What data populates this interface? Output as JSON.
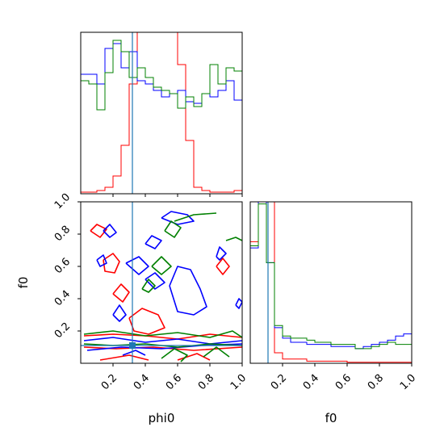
{
  "chart_data": {
    "type": "corner",
    "parameters": [
      "phi0",
      "f0"
    ],
    "truth": {
      "phi0": 0.32,
      "f0": 0.11
    },
    "colors": {
      "red": "#ff0000",
      "blue": "#0000ff",
      "green": "#008000",
      "truth": "#1f77b4"
    },
    "panels": [
      {
        "id": "phi0-hist",
        "type": "histogram",
        "xlim": [
          0,
          1
        ],
        "ytick_labels_shown": false,
        "bins": 20,
        "series": [
          {
            "color": "red",
            "values": [
              0.01,
              0.01,
              0.02,
              0.04,
              0.11,
              0.3,
              0.68,
              1.2,
              1.2,
              1.2,
              1.2,
              1.2,
              0.8,
              0.33,
              0.04,
              0.02,
              0.01,
              0.01,
              0.01,
              0.02
            ]
          },
          {
            "color": "blue",
            "values": [
              0.74,
              0.74,
              0.68,
              0.9,
              0.93,
              0.78,
              0.88,
              0.7,
              0.68,
              0.64,
              0.6,
              0.62,
              0.64,
              0.57,
              0.56,
              0.62,
              0.6,
              0.64,
              0.7,
              0.58
            ]
          },
          {
            "color": "green",
            "values": [
              0.7,
              0.68,
              0.52,
              0.75,
              0.95,
              0.88,
              0.72,
              0.78,
              0.72,
              0.66,
              0.64,
              0.62,
              0.53,
              0.6,
              0.54,
              0.62,
              0.8,
              0.68,
              0.78,
              0.76
            ]
          }
        ]
      },
      {
        "id": "f0-hist",
        "type": "histogram",
        "xlim": [
          0,
          1
        ],
        "xticks": [
          "0.2",
          "0.4",
          "0.6",
          "0.8",
          "1.0"
        ],
        "xlabel": "f0",
        "ytick_labels_shown": false,
        "bins": 20,
        "series": [
          {
            "color": "red",
            "values": [
              0.58,
              1.2,
              1.2,
              0.05,
              0.02,
              0.02,
              0.02,
              0.01,
              0.01,
              0.01,
              0.01,
              0.01,
              0.005,
              0.005,
              0.005,
              0.005,
              0.005,
              0.005,
              0.005,
              0.005
            ]
          },
          {
            "color": "blue",
            "values": [
              0.55,
              0.77,
              0.48,
              0.17,
              0.12,
              0.1,
              0.1,
              0.09,
              0.09,
              0.09,
              0.08,
              0.08,
              0.08,
              0.07,
              0.08,
              0.09,
              0.1,
              0.11,
              0.13,
              0.14
            ]
          },
          {
            "color": "green",
            "values": [
              0.56,
              0.76,
              0.48,
              0.18,
              0.13,
              0.12,
              0.12,
              0.11,
              0.1,
              0.1,
              0.09,
              0.09,
              0.09,
              0.07,
              0.07,
              0.08,
              0.09,
              0.1,
              0.09,
              0.09
            ]
          }
        ]
      },
      {
        "id": "phi0-f0-2d",
        "type": "contour",
        "xlim": [
          0,
          1
        ],
        "ylim": [
          0,
          1
        ],
        "xticks": [
          "0.2",
          "0.4",
          "0.6",
          "0.8",
          "1.0"
        ],
        "yticks": [
          "0.2",
          "0.4",
          "0.6",
          "0.8",
          "1.0"
        ],
        "xlabel": "phi0",
        "ylabel": "f0",
        "contours": [
          {
            "color": "red",
            "points": [
              [
                0.14,
                0.64
              ],
              [
                0.2,
                0.68
              ],
              [
                0.24,
                0.63
              ],
              [
                0.21,
                0.56
              ],
              [
                0.15,
                0.57
              ],
              [
                0.14,
                0.64
              ]
            ]
          },
          {
            "color": "red",
            "points": [
              [
                0.06,
                0.82
              ],
              [
                0.1,
                0.86
              ],
              [
                0.16,
                0.83
              ],
              [
                0.12,
                0.78
              ],
              [
                0.06,
                0.82
              ]
            ]
          },
          {
            "color": "red",
            "points": [
              [
                0.3,
                0.28
              ],
              [
                0.38,
                0.34
              ],
              [
                0.48,
                0.3
              ],
              [
                0.52,
                0.22
              ],
              [
                0.42,
                0.18
              ],
              [
                0.33,
                0.2
              ],
              [
                0.3,
                0.28
              ]
            ]
          },
          {
            "color": "red",
            "points": [
              [
                0.2,
                0.43
              ],
              [
                0.25,
                0.49
              ],
              [
                0.3,
                0.44
              ],
              [
                0.26,
                0.38
              ],
              [
                0.2,
                0.43
              ]
            ]
          },
          {
            "color": "red",
            "points": [
              [
                0.84,
                0.6
              ],
              [
                0.88,
                0.65
              ],
              [
                0.92,
                0.6
              ],
              [
                0.88,
                0.55
              ],
              [
                0.84,
                0.6
              ]
            ]
          },
          {
            "color": "red",
            "points": [
              [
                0.02,
                0.17
              ],
              [
                0.2,
                0.18
              ],
              [
                0.4,
                0.17
              ],
              [
                0.6,
                0.15
              ],
              [
                0.8,
                0.18
              ],
              [
                1.0,
                0.16
              ]
            ]
          },
          {
            "color": "red",
            "points": [
              [
                0.02,
                0.1
              ],
              [
                0.22,
                0.09
              ],
              [
                0.45,
                0.1
              ],
              [
                0.7,
                0.08
              ],
              [
                1.0,
                0.1
              ]
            ]
          },
          {
            "color": "red",
            "points": [
              [
                0.12,
                0.02
              ],
              [
                0.3,
                0.05
              ],
              [
                0.42,
                0.02
              ]
            ]
          },
          {
            "color": "red",
            "points": [
              [
                0.6,
                0.02
              ],
              [
                0.72,
                0.06
              ],
              [
                0.8,
                0.02
              ]
            ]
          },
          {
            "color": "blue",
            "points": [
              [
                0.5,
                0.9
              ],
              [
                0.56,
                0.94
              ],
              [
                0.66,
                0.92
              ],
              [
                0.7,
                0.88
              ],
              [
                0.6,
                0.86
              ],
              [
                0.5,
                0.9
              ]
            ]
          },
          {
            "color": "blue",
            "points": [
              [
                0.4,
                0.74
              ],
              [
                0.44,
                0.79
              ],
              [
                0.5,
                0.76
              ],
              [
                0.46,
                0.71
              ],
              [
                0.4,
                0.74
              ]
            ]
          },
          {
            "color": "blue",
            "points": [
              [
                0.14,
                0.82
              ],
              [
                0.18,
                0.86
              ],
              [
                0.22,
                0.81
              ],
              [
                0.18,
                0.78
              ],
              [
                0.14,
                0.82
              ]
            ]
          },
          {
            "color": "blue",
            "points": [
              [
                0.28,
                0.62
              ],
              [
                0.36,
                0.66
              ],
              [
                0.42,
                0.6
              ],
              [
                0.36,
                0.55
              ],
              [
                0.28,
                0.62
              ]
            ]
          },
          {
            "color": "blue",
            "points": [
              [
                0.1,
                0.64
              ],
              [
                0.14,
                0.67
              ],
              [
                0.16,
                0.62
              ],
              [
                0.12,
                0.6
              ],
              [
                0.1,
                0.64
              ]
            ]
          },
          {
            "color": "blue",
            "points": [
              [
                0.4,
                0.52
              ],
              [
                0.46,
                0.56
              ],
              [
                0.52,
                0.5
              ],
              [
                0.46,
                0.46
              ],
              [
                0.4,
                0.52
              ]
            ]
          },
          {
            "color": "blue",
            "points": [
              [
                0.55,
                0.48
              ],
              [
                0.6,
                0.6
              ],
              [
                0.68,
                0.58
              ],
              [
                0.74,
                0.46
              ],
              [
                0.78,
                0.35
              ],
              [
                0.7,
                0.3
              ],
              [
                0.6,
                0.32
              ],
              [
                0.55,
                0.48
              ]
            ]
          },
          {
            "color": "blue",
            "points": [
              [
                0.84,
                0.66
              ],
              [
                0.86,
                0.72
              ],
              [
                0.9,
                0.68
              ],
              [
                0.86,
                0.64
              ],
              [
                0.84,
                0.66
              ]
            ]
          },
          {
            "color": "blue",
            "points": [
              [
                0.96,
                0.36
              ],
              [
                0.98,
                0.4
              ],
              [
                1.0,
                0.38
              ],
              [
                0.98,
                0.34
              ],
              [
                0.96,
                0.36
              ]
            ]
          },
          {
            "color": "blue",
            "points": [
              [
                0.2,
                0.3
              ],
              [
                0.24,
                0.36
              ],
              [
                0.28,
                0.3
              ],
              [
                0.24,
                0.26
              ],
              [
                0.2,
                0.3
              ]
            ]
          },
          {
            "color": "blue",
            "points": [
              [
                0.02,
                0.14
              ],
              [
                0.2,
                0.16
              ],
              [
                0.4,
                0.13
              ],
              [
                0.6,
                0.15
              ],
              [
                0.8,
                0.12
              ],
              [
                1.0,
                0.14
              ]
            ]
          },
          {
            "color": "blue",
            "points": [
              [
                0.04,
                0.08
              ],
              [
                0.25,
                0.1
              ],
              [
                0.5,
                0.09
              ],
              [
                0.75,
                0.11
              ],
              [
                1.0,
                0.12
              ]
            ]
          },
          {
            "color": "blue",
            "points": [
              [
                0.26,
                0.05
              ],
              [
                0.34,
                0.08
              ],
              [
                0.4,
                0.05
              ]
            ]
          },
          {
            "color": "green",
            "points": [
              [
                0.52,
                0.82
              ],
              [
                0.56,
                0.88
              ],
              [
                0.62,
                0.84
              ],
              [
                0.58,
                0.78
              ],
              [
                0.52,
                0.82
              ]
            ]
          },
          {
            "color": "green",
            "points": [
              [
                0.44,
                0.6
              ],
              [
                0.5,
                0.66
              ],
              [
                0.56,
                0.6
              ],
              [
                0.5,
                0.55
              ],
              [
                0.44,
                0.6
              ]
            ]
          },
          {
            "color": "green",
            "points": [
              [
                0.38,
                0.46
              ],
              [
                0.42,
                0.52
              ],
              [
                0.46,
                0.48
              ],
              [
                0.42,
                0.44
              ],
              [
                0.38,
                0.46
              ]
            ]
          },
          {
            "color": "green",
            "points": [
              [
                0.58,
                0.88
              ],
              [
                0.7,
                0.92
              ],
              [
                0.84,
                0.93
              ]
            ]
          },
          {
            "color": "green",
            "points": [
              [
                0.9,
                0.76
              ],
              [
                0.96,
                0.78
              ],
              [
                1.0,
                0.76
              ]
            ]
          },
          {
            "color": "green",
            "points": [
              [
                0.02,
                0.18
              ],
              [
                0.2,
                0.2
              ],
              [
                0.4,
                0.17
              ],
              [
                0.6,
                0.19
              ],
              [
                0.8,
                0.16
              ],
              [
                0.94,
                0.2
              ],
              [
                1.0,
                0.16
              ]
            ]
          },
          {
            "color": "green",
            "points": [
              [
                0.02,
                0.12
              ],
              [
                0.2,
                0.11
              ],
              [
                0.4,
                0.12
              ],
              [
                0.6,
                0.1
              ],
              [
                0.8,
                0.12
              ],
              [
                1.0,
                0.11
              ]
            ]
          },
          {
            "color": "green",
            "points": [
              [
                0.5,
                0.03
              ],
              [
                0.58,
                0.09
              ],
              [
                0.66,
                0.05
              ],
              [
                0.62,
                0.01
              ]
            ]
          },
          {
            "color": "green",
            "points": [
              [
                0.76,
                0.04
              ],
              [
                0.84,
                0.1
              ],
              [
                0.92,
                0.04
              ]
            ]
          }
        ]
      }
    ]
  }
}
